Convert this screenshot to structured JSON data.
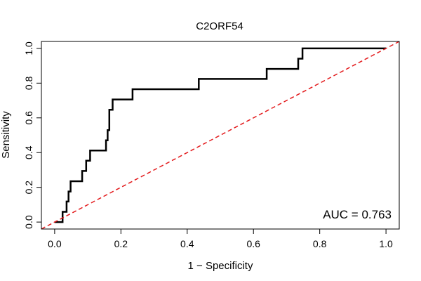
{
  "chart_data": {
    "type": "line",
    "title": "C2ORF54",
    "xlabel": "1 − Specificity",
    "ylabel": "Sensitivity",
    "xlim": [
      -0.04,
      1.04
    ],
    "ylim": [
      -0.04,
      1.04
    ],
    "xticks": [
      0.0,
      0.2,
      0.4,
      0.6,
      0.8,
      1.0
    ],
    "xtick_labels": [
      "0.0",
      "0.2",
      "0.4",
      "0.6",
      "0.8",
      "1.0"
    ],
    "yticks": [
      0.0,
      0.2,
      0.4,
      0.6,
      0.8,
      1.0
    ],
    "ytick_labels": [
      "0.0",
      "0.2",
      "0.4",
      "0.6",
      "0.8",
      "1.0"
    ],
    "grid": false,
    "annotation": "AUC = 0.763",
    "series": [
      {
        "line_style": "solid",
        "color": "#000000",
        "x": [
          0.0,
          0.024,
          0.024,
          0.036,
          0.036,
          0.042,
          0.042,
          0.048,
          0.048,
          0.083,
          0.083,
          0.095,
          0.095,
          0.107,
          0.107,
          0.117,
          0.117,
          0.155,
          0.155,
          0.16,
          0.16,
          0.165,
          0.165,
          0.175,
          0.175,
          0.235,
          0.235,
          0.435,
          0.435,
          0.64,
          0.64,
          0.735,
          0.735,
          0.748,
          0.748,
          1.0
        ],
        "y": [
          0.0,
          0.0,
          0.059,
          0.059,
          0.118,
          0.118,
          0.176,
          0.176,
          0.235,
          0.235,
          0.294,
          0.294,
          0.353,
          0.353,
          0.412,
          0.412,
          0.412,
          0.412,
          0.471,
          0.471,
          0.529,
          0.529,
          0.647,
          0.647,
          0.706,
          0.706,
          0.765,
          0.765,
          0.824,
          0.824,
          0.882,
          0.882,
          0.941,
          0.941,
          1.0,
          1.0
        ]
      },
      {
        "line_style": "dashed",
        "color": "#e31a1c",
        "x": [
          -0.04,
          1.04
        ],
        "y": [
          -0.04,
          1.04
        ]
      }
    ]
  }
}
